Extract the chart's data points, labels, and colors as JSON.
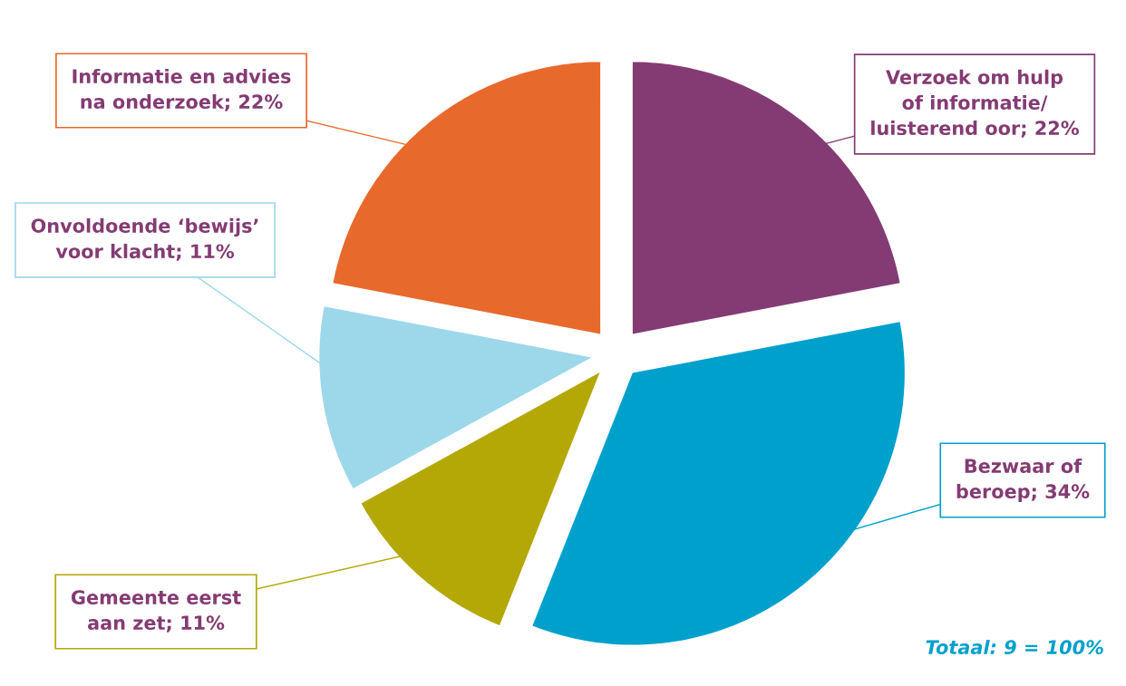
{
  "chart_data": {
    "type": "pie",
    "categories": [
      "Verzoek om hulp\nof informatie/\nluisterend oor",
      "Bezwaar of\nberoep",
      "Gemeente eerst\naan zet",
      "Onvoldoende ‘bewijs’\nvoor klacht",
      "Informatie en advies\nna onderzoek"
    ],
    "values": [
      22,
      34,
      11,
      11,
      22
    ],
    "value_labels": [
      "22%",
      "34%",
      "11%",
      "11%",
      "22%"
    ],
    "colors": [
      "#843b73",
      "#00a0cc",
      "#b3a806",
      "#9dd8ea",
      "#e8692c"
    ],
    "annotations": [
      "Totaal: 9 = 100%"
    ]
  }
}
